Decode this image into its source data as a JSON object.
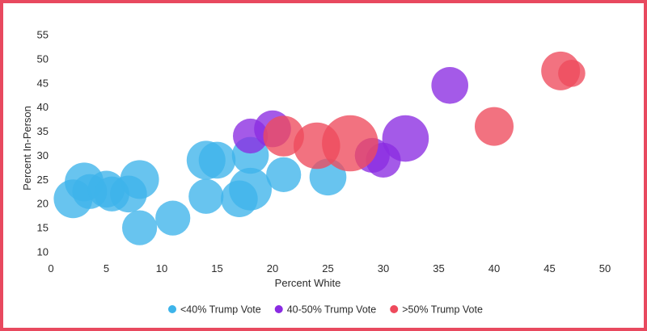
{
  "chart_data": {
    "type": "scatter",
    "subtype": "bubble",
    "xlabel": "Percent White",
    "ylabel": "Percent In-Person",
    "xlim": [
      0,
      50
    ],
    "ylim": [
      10,
      55
    ],
    "x_ticks": [
      0,
      5,
      10,
      15,
      20,
      25,
      30,
      35,
      40,
      45,
      50
    ],
    "y_ticks": [
      10,
      15,
      20,
      25,
      30,
      35,
      40,
      45,
      50,
      55
    ],
    "grid": false,
    "legend_position": "bottom",
    "series": [
      {
        "name": "<40% Trump Vote",
        "color": "#3db4ea",
        "points": [
          {
            "x": 2,
            "y": 21,
            "size": 1.0
          },
          {
            "x": 3,
            "y": 24.5,
            "size": 1.0
          },
          {
            "x": 3.5,
            "y": 22.5,
            "size": 0.9
          },
          {
            "x": 5,
            "y": 23,
            "size": 0.95
          },
          {
            "x": 5.5,
            "y": 22,
            "size": 0.9
          },
          {
            "x": 7,
            "y": 22,
            "size": 0.95
          },
          {
            "x": 8,
            "y": 25,
            "size": 1.0
          },
          {
            "x": 8,
            "y": 15,
            "size": 0.9
          },
          {
            "x": 11,
            "y": 17,
            "size": 0.9
          },
          {
            "x": 14,
            "y": 29,
            "size": 1.0
          },
          {
            "x": 15,
            "y": 29,
            "size": 0.95
          },
          {
            "x": 14,
            "y": 21.5,
            "size": 0.9
          },
          {
            "x": 17,
            "y": 21,
            "size": 0.95
          },
          {
            "x": 18,
            "y": 23,
            "size": 1.1
          },
          {
            "x": 18,
            "y": 30,
            "size": 0.95
          },
          {
            "x": 21,
            "y": 26,
            "size": 0.9
          },
          {
            "x": 25,
            "y": 25.5,
            "size": 0.95
          }
        ]
      },
      {
        "name": "40-50% Trump Vote",
        "color": "#8a2be2",
        "points": [
          {
            "x": 18,
            "y": 34,
            "size": 0.9
          },
          {
            "x": 20,
            "y": 35.5,
            "size": 0.95
          },
          {
            "x": 29,
            "y": 30,
            "size": 0.9
          },
          {
            "x": 30,
            "y": 29,
            "size": 0.9
          },
          {
            "x": 32,
            "y": 33.5,
            "size": 1.2
          },
          {
            "x": 36,
            "y": 44.5,
            "size": 0.95
          }
        ]
      },
      {
        "name": ">50% Trump Vote",
        "color": "#ee4a5c",
        "points": [
          {
            "x": 21,
            "y": 34,
            "size": 1.05
          },
          {
            "x": 24,
            "y": 32,
            "size": 1.2
          },
          {
            "x": 27,
            "y": 32.5,
            "size": 1.45
          },
          {
            "x": 40,
            "y": 36,
            "size": 1.0
          },
          {
            "x": 46,
            "y": 47.5,
            "size": 1.0
          },
          {
            "x": 47,
            "y": 47,
            "size": 0.7
          }
        ]
      }
    ]
  }
}
